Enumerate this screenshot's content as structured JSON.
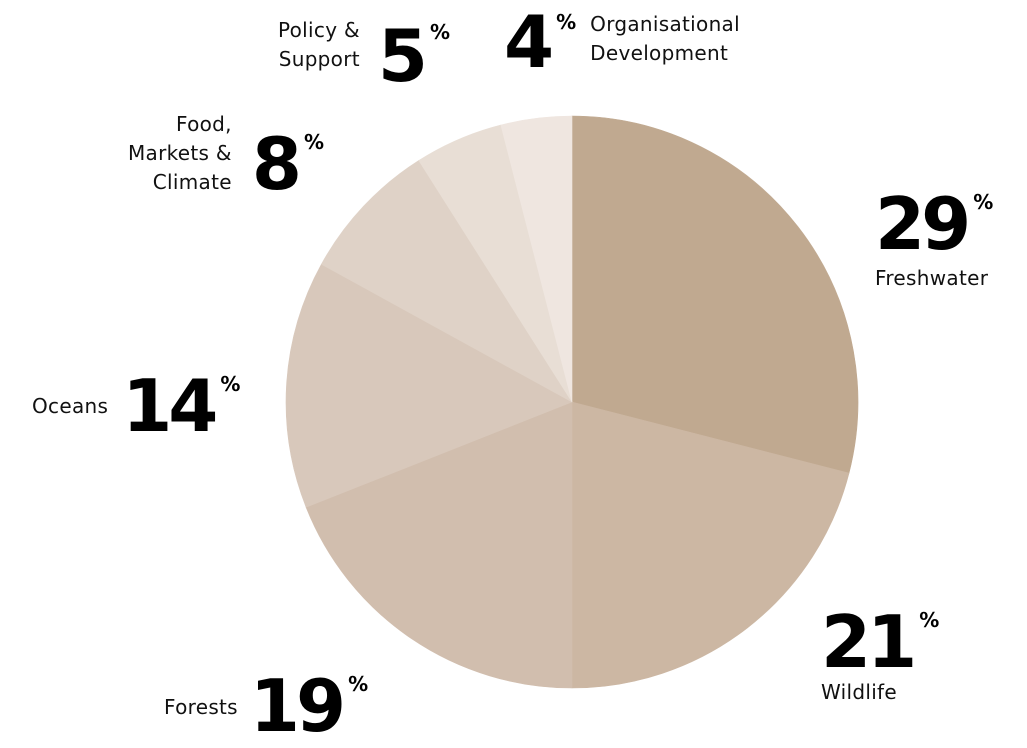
{
  "chart_data": {
    "type": "pie",
    "unit": "%",
    "slices": [
      {
        "label": "Freshwater",
        "value": 29,
        "color": "#c0a990"
      },
      {
        "label": "Wildlife",
        "value": 21,
        "color": "#ccb7a3"
      },
      {
        "label": "Forests",
        "value": 19,
        "color": "#d1beae"
      },
      {
        "label": "Oceans",
        "value": 14,
        "color": "#d8c8bb"
      },
      {
        "label": "Food,\nMarkets &\nClimate",
        "value": 8,
        "color": "#dfd2c7"
      },
      {
        "label": "Policy &\nSupport",
        "value": 5,
        "color": "#e8ded5"
      },
      {
        "label": "Organisational\nDevelopment",
        "value": 4,
        "color": "#efe6e0"
      }
    ]
  }
}
